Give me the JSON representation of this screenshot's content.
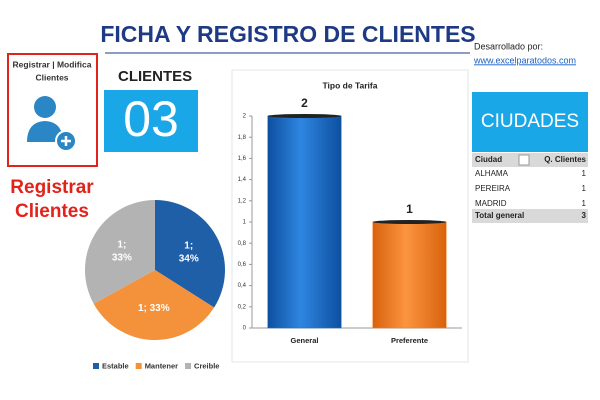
{
  "header": {
    "title": "FICHA Y REGISTRO DE CLIENTES",
    "credit": "Desarrollado por:",
    "link": "www.excelparatodos.com"
  },
  "register_button": {
    "label": [
      "Registrar | Modifica",
      "Clientes"
    ],
    "callout": [
      "Registrar",
      "Clientes"
    ]
  },
  "clients": {
    "label": "CLIENTES",
    "count": "03"
  },
  "cities": {
    "title": "CIUDADES",
    "columns": [
      "Ciudad",
      "Q. Clientes"
    ],
    "rows": [
      [
        "ALHAMA",
        1
      ],
      [
        "PEREIRA",
        1
      ],
      [
        "MADRID",
        1
      ]
    ],
    "total": [
      "Total general",
      3
    ]
  },
  "chart_data": [
    {
      "type": "pie",
      "categories": [
        "Estable",
        "Mantener",
        "Creible"
      ],
      "values": [
        34,
        33,
        33
      ],
      "value_labels": [
        "1; 34%",
        "1; 33%",
        "1; 33%"
      ],
      "colors": [
        "#1f5fa8",
        "#f4913b",
        "#b3b3b3"
      ],
      "legend": "bottom"
    },
    {
      "type": "bar",
      "title": "Tipo de Tarifa",
      "categories": [
        "General",
        "Preferente"
      ],
      "values": [
        2,
        1
      ],
      "colors": [
        "#1f6fd0",
        "#f47c20"
      ],
      "ylim": [
        0,
        2
      ],
      "yticks": [
        0,
        {
          "value": 0.2,
          "label": "0,2"
        },
        {
          "value": 0.4,
          "label": "0,4"
        },
        {
          "value": 0.6,
          "label": "0,6"
        },
        {
          "value": 0.8,
          "label": "0,8"
        },
        1,
        {
          "value": 1.2,
          "label": "1,2"
        },
        {
          "value": 1.4,
          "label": "1,4"
        },
        {
          "value": 1.6,
          "label": "1,6"
        },
        {
          "value": 1.8,
          "label": "1,8"
        },
        2
      ]
    }
  ]
}
